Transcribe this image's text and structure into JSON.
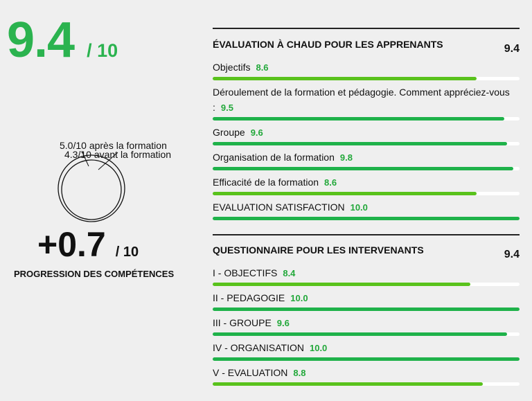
{
  "overall": {
    "score": "9.4",
    "denominator": "/ 10"
  },
  "competences": {
    "after_label": "5.0/10 après la formation",
    "before_label": "4.3/10 avant la formation",
    "after": 5.0,
    "before": 4.3,
    "progress": "+0.7",
    "progress_den": "/ 10",
    "progress_label": "PROGRESSION DES COMPÉTENCES"
  },
  "learners": {
    "title": "ÉVALUATION À CHAUD POUR LES APPRENANTS",
    "total": "9.4",
    "items": [
      {
        "label": "Objectifs",
        "value": "8.6",
        "fraction": 0.86,
        "accent": "#59c21c"
      },
      {
        "label": "Déroulement de la formation et pédagogie. Comment appréciez-vous :",
        "value": "9.5",
        "fraction": 0.95,
        "accent": "#1fb24a"
      },
      {
        "label": "Groupe",
        "value": "9.6",
        "fraction": 0.96,
        "accent": "#1fb24a"
      },
      {
        "label": "Organisation de la formation",
        "value": "9.8",
        "fraction": 0.98,
        "accent": "#1fb24a"
      },
      {
        "label": "Efficacité de la formation",
        "value": "8.6",
        "fraction": 0.86,
        "accent": "#59c21c"
      },
      {
        "label": "EVALUATION SATISFACTION",
        "value": "10.0",
        "fraction": 1.0,
        "accent": "#1fb24a"
      }
    ]
  },
  "trainers": {
    "title": "QUESTIONNAIRE POUR LES INTERVENANTS",
    "total": "9.4",
    "items": [
      {
        "label": "I - OBJECTIFS",
        "value": "8.4",
        "fraction": 0.84,
        "accent": "#59c21c"
      },
      {
        "label": "II - PEDAGOGIE",
        "value": "10.0",
        "fraction": 1.0,
        "accent": "#1fb24a"
      },
      {
        "label": "III - GROUPE",
        "value": "9.6",
        "fraction": 0.96,
        "accent": "#1fb24a"
      },
      {
        "label": "IV - ORGANISATION",
        "value": "10.0",
        "fraction": 1.0,
        "accent": "#1fb24a"
      },
      {
        "label": "V - EVALUATION",
        "value": "8.8",
        "fraction": 0.88,
        "accent": "#59c21c"
      }
    ]
  }
}
